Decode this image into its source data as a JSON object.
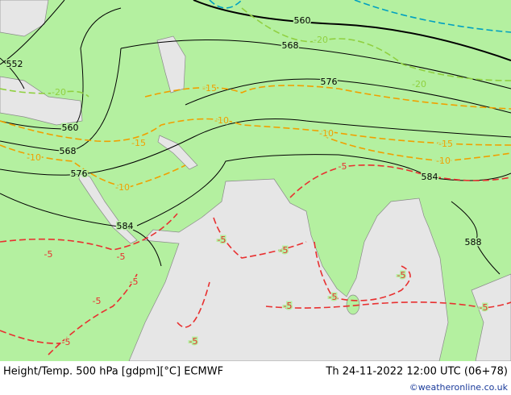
{
  "map_labels": {
    "height": [
      "560",
      "568",
      "576",
      "552",
      "560",
      "568",
      "576",
      "584",
      "584",
      "588"
    ],
    "temp_orange": [
      "-15",
      "-10",
      "-15",
      "-10",
      "-10",
      "-10",
      "-15",
      "-10"
    ],
    "temp_green": [
      "-20",
      "-20",
      "-20"
    ],
    "temp_red": [
      "-5",
      "-5",
      "-5",
      "-5",
      "-5",
      "-5",
      "-5",
      "-5",
      "-5",
      "-5",
      "-5",
      "-5",
      "-5"
    ]
  },
  "footer": {
    "left": "Height/Temp. 500 hPa [gdpm][°C] ECMWF",
    "right": "Th 24-11-2022 12:00 UTC (06+78)",
    "credit": "©weatheronline.co.uk"
  }
}
